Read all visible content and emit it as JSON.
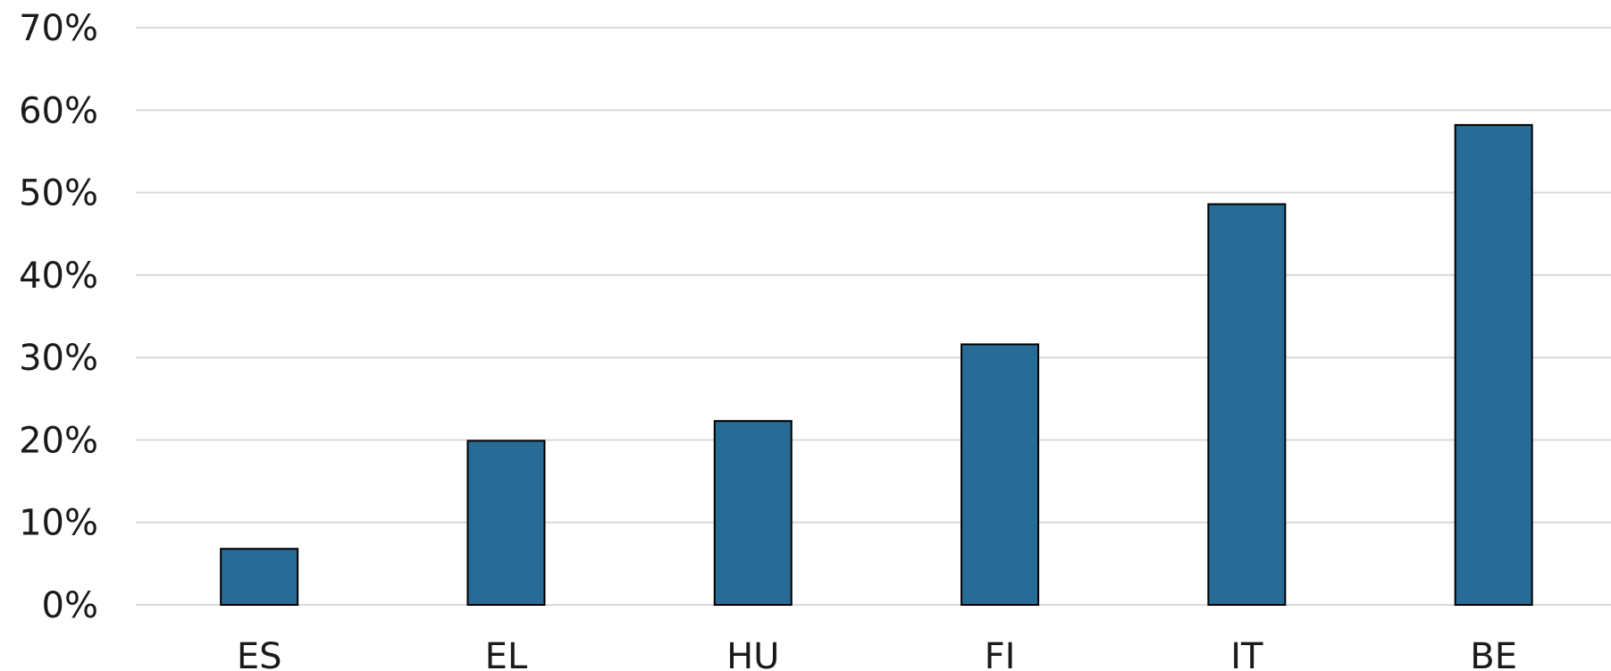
{
  "chart_data": {
    "type": "bar",
    "categories": [
      "ES",
      "EL",
      "HU",
      "FI",
      "IT",
      "BE"
    ],
    "values": [
      6.8,
      19.9,
      22.3,
      31.6,
      48.6,
      58.2
    ],
    "ylim": [
      0,
      70
    ],
    "y_ticks": [
      0,
      10,
      20,
      30,
      40,
      50,
      60,
      70
    ],
    "y_tick_labels": [
      "0%",
      "10%",
      "20%",
      "30%",
      "40%",
      "50%",
      "60%",
      "70%"
    ],
    "title": "",
    "xlabel": "",
    "ylabel": "",
    "grid": true,
    "legend": "none",
    "bar_color": "#286b97",
    "bar_outline": "#000000",
    "grid_color": "#d9d9d9"
  }
}
